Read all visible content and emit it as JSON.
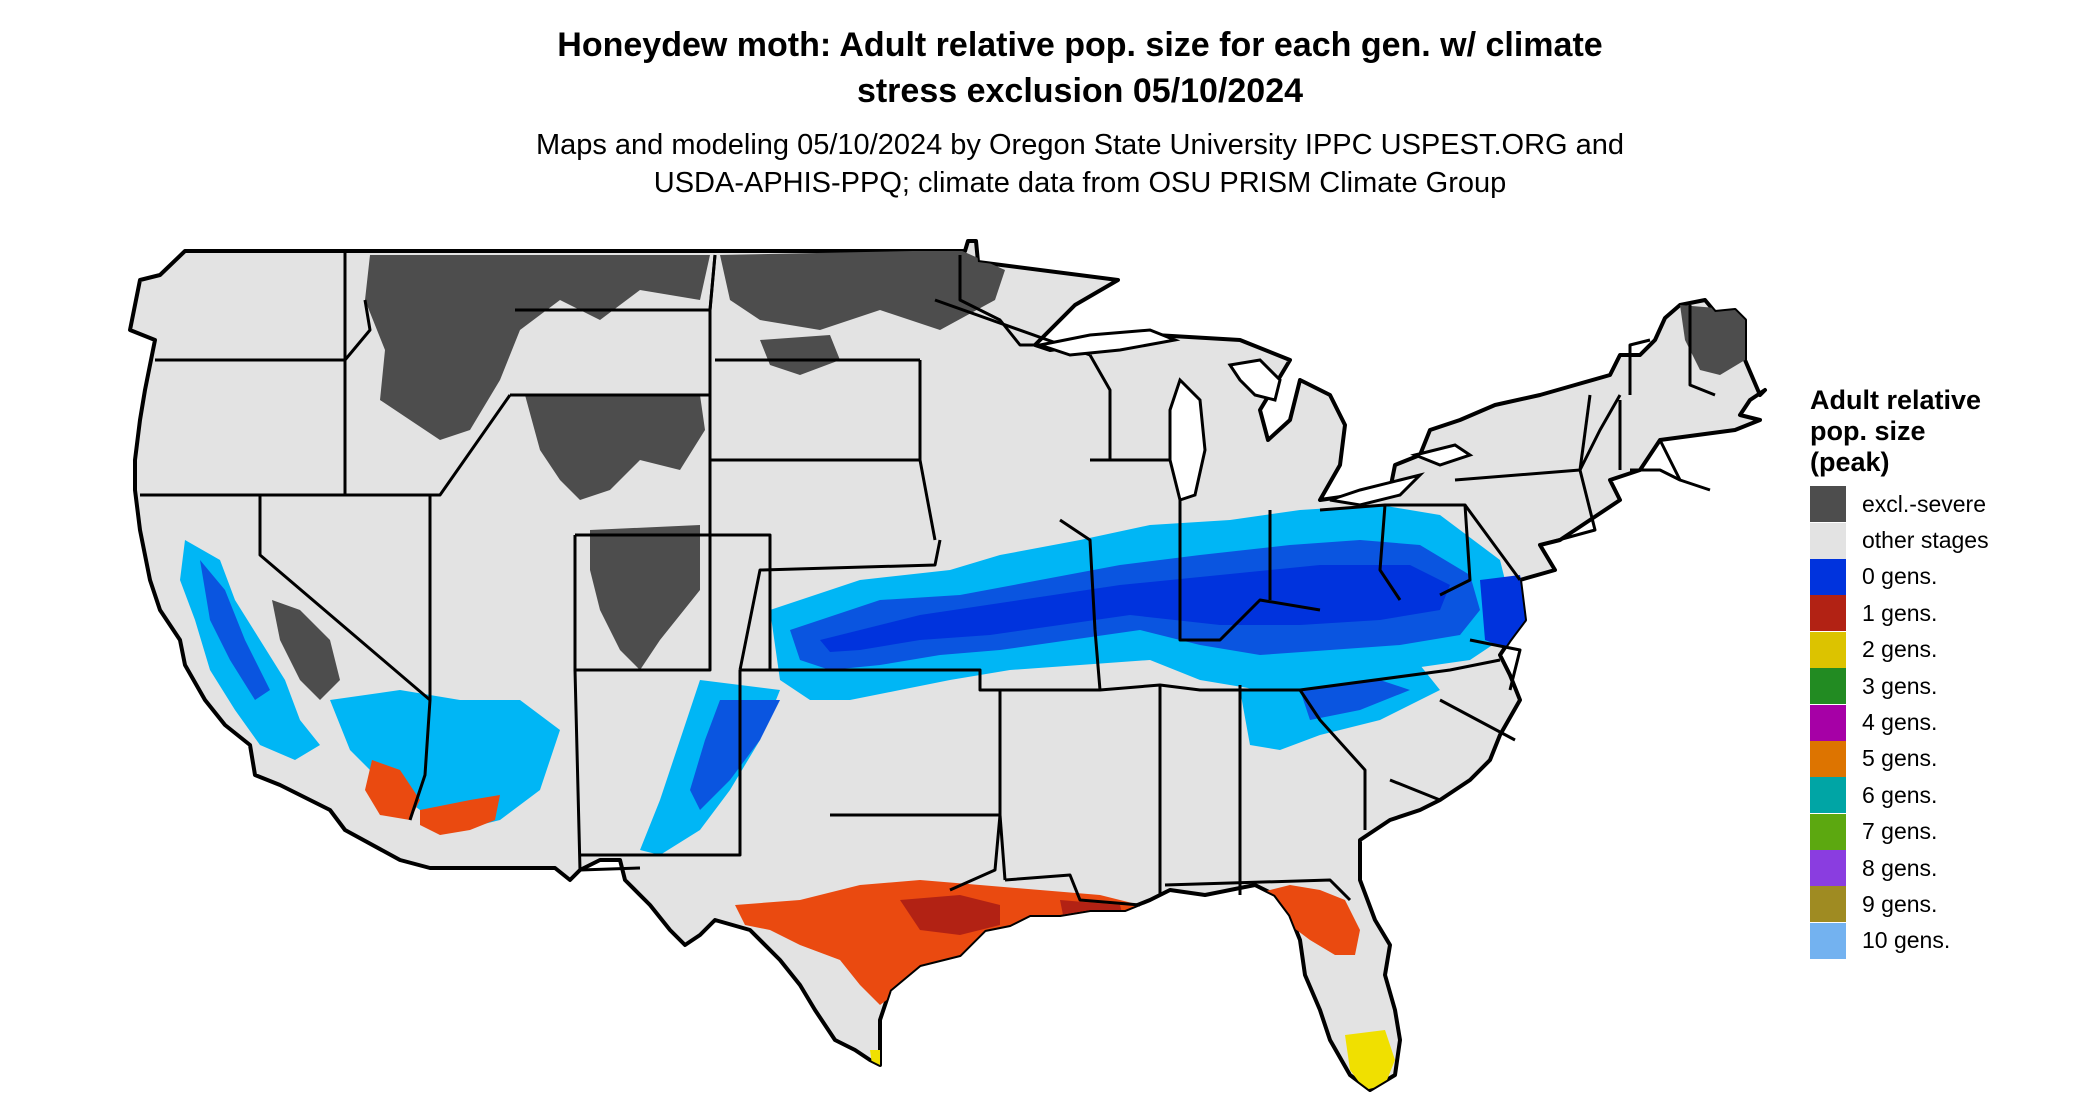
{
  "title": {
    "line1": "Honeydew moth: Adult relative pop. size for each gen. w/ climate",
    "line2": "stress exclusion 05/10/2024"
  },
  "subtitle": {
    "line1": "Maps and modeling 05/10/2024 by Oregon State University IPPC USPEST.ORG and",
    "line2": "USDA-APHIS-PPQ; climate data from OSU PRISM Climate Group"
  },
  "map": {
    "region": "Contiguous United States",
    "base_color": "#e3e3e3",
    "border_color": "#000000",
    "zones": [
      {
        "category": "excl.-severe",
        "regions": [
          "northern Rockies",
          "Minnesota / North Dakota border",
          "Wyoming / Colorado mountains",
          "northern Maine",
          "Sierra Nevada"
        ]
      },
      {
        "category": "0 gens.",
        "regions": [
          "central band Kansas to Mid-Atlantic",
          "Appalachians",
          "Sierra Nevada foothills",
          "Arizona / New Mexico highlands"
        ]
      },
      {
        "category": "1 gens.",
        "regions": [
          "Gulf Coast Texas to Florida",
          "southern California deserts",
          "southwestern Arizona"
        ]
      },
      {
        "category": "2 gens.",
        "regions": [
          "southern Florida",
          "southern tip of Texas"
        ]
      }
    ]
  },
  "legend": {
    "title_line1": "Adult relative",
    "title_line2": "pop. size",
    "title_line3": "(peak)",
    "items": [
      {
        "label": "excl.-severe",
        "color": "#4d4d4d"
      },
      {
        "label": "other stages",
        "color": "#e3e3e3"
      },
      {
        "label": "0 gens.",
        "color": "#0033dd"
      },
      {
        "label": "1 gens.",
        "color": "#b22214"
      },
      {
        "label": "2 gens.",
        "color": "#dcc300"
      },
      {
        "label": "3 gens.",
        "color": "#228b22"
      },
      {
        "label": "4 gens.",
        "color": "#a600a6"
      },
      {
        "label": "5 gens.",
        "color": "#dd7400"
      },
      {
        "label": "6 gens.",
        "color": "#00a5a5"
      },
      {
        "label": "7 gens.",
        "color": "#5ca810"
      },
      {
        "label": "8 gens.",
        "color": "#8a3de0"
      },
      {
        "label": "9 gens.",
        "color": "#9f8b22"
      },
      {
        "label": "10 gens.",
        "color": "#73b2f0"
      }
    ]
  }
}
